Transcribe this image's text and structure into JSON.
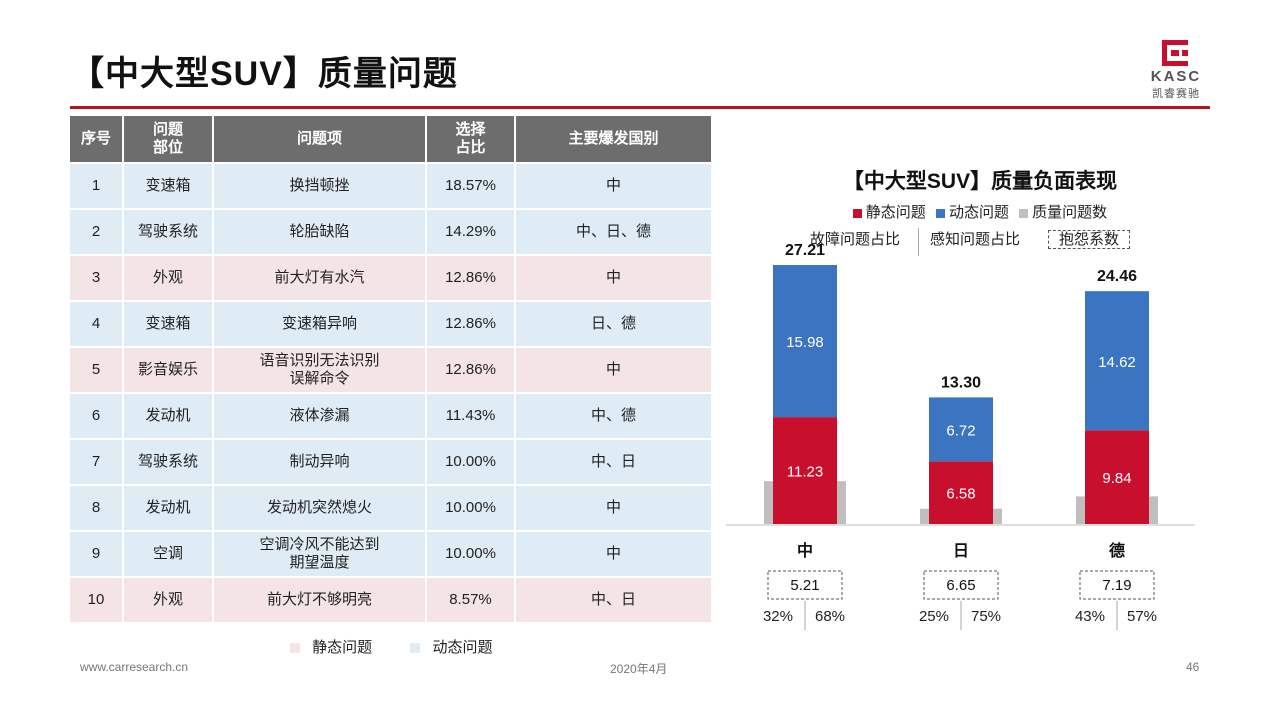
{
  "header": {
    "title": "【中大型SUV】质量问题",
    "logo_en": "KASC",
    "logo_cn": "凯睿赛驰"
  },
  "colors": {
    "brand_red": "#b5121b",
    "static": "#c8102e",
    "dynamic": "#3b74c1",
    "count": "#bfbfbf",
    "header_gray": "#6d6d6d",
    "row_static": "#f4e4e5",
    "row_dynamic": "#dfebf5"
  },
  "table": {
    "headers": [
      "序号",
      "问题\n部位",
      "问题项",
      "选择\n占比",
      "主要爆发国别"
    ],
    "rows": [
      {
        "no": "1",
        "part": "变速箱",
        "item": "换挡顿挫",
        "ratio": "18.57%",
        "country": "中",
        "kind": "dynamic"
      },
      {
        "no": "2",
        "part": "驾驶系统",
        "item": "轮胎缺陷",
        "ratio": "14.29%",
        "country": "中、日、德",
        "kind": "dynamic"
      },
      {
        "no": "3",
        "part": "外观",
        "item": "前大灯有水汽",
        "ratio": "12.86%",
        "country": "中",
        "kind": "static"
      },
      {
        "no": "4",
        "part": "变速箱",
        "item": "变速箱异响",
        "ratio": "12.86%",
        "country": "日、德",
        "kind": "dynamic"
      },
      {
        "no": "5",
        "part": "影音娱乐",
        "item": "语音识别无法识别\n误解命令",
        "ratio": "12.86%",
        "country": "中",
        "kind": "static"
      },
      {
        "no": "6",
        "part": "发动机",
        "item": "液体渗漏",
        "ratio": "11.43%",
        "country": "中、德",
        "kind": "dynamic"
      },
      {
        "no": "7",
        "part": "驾驶系统",
        "item": "制动异响",
        "ratio": "10.00%",
        "country": "中、日",
        "kind": "dynamic"
      },
      {
        "no": "8",
        "part": "发动机",
        "item": "发动机突然熄火",
        "ratio": "10.00%",
        "country": "中",
        "kind": "dynamic"
      },
      {
        "no": "9",
        "part": "空调",
        "item": "空调冷风不能达到\n期望温度",
        "ratio": "10.00%",
        "country": "中",
        "kind": "dynamic"
      },
      {
        "no": "10",
        "part": "外观",
        "item": "前大灯不够明亮",
        "ratio": "8.57%",
        "country": "中、日",
        "kind": "static"
      }
    ],
    "legend": {
      "static": "静态问题",
      "dynamic": "动态问题"
    }
  },
  "chart_data": {
    "type": "bar",
    "title": "【中大型SUV】质量负面表现",
    "legend": [
      "静态问题",
      "动态问题",
      "质量问题数"
    ],
    "sub_legend": {
      "fault_ratio": "故障问题占比",
      "perceive_ratio": "感知问题占比",
      "complaint": "抱怨系数"
    },
    "categories": [
      "中",
      "日",
      "德"
    ],
    "series": [
      {
        "name": "静态问题",
        "values": [
          11.23,
          6.58,
          9.84
        ]
      },
      {
        "name": "动态问题",
        "values": [
          15.98,
          6.72,
          14.62
        ]
      },
      {
        "name": "质量问题数",
        "values": [
          4.5,
          1.6,
          2.9
        ]
      }
    ],
    "totals": [
      "27.21",
      "13.30",
      "24.46"
    ],
    "complaint_coefficient": [
      "5.21",
      "6.65",
      "7.19"
    ],
    "fault_ratio": [
      "32%",
      "25%",
      "43%"
    ],
    "perceive_ratio": [
      "68%",
      "75%",
      "57%"
    ],
    "ylim": [
      0,
      28
    ]
  },
  "footer": {
    "site": "www.carresearch.cn",
    "date": "2020年4月",
    "page": "46"
  }
}
